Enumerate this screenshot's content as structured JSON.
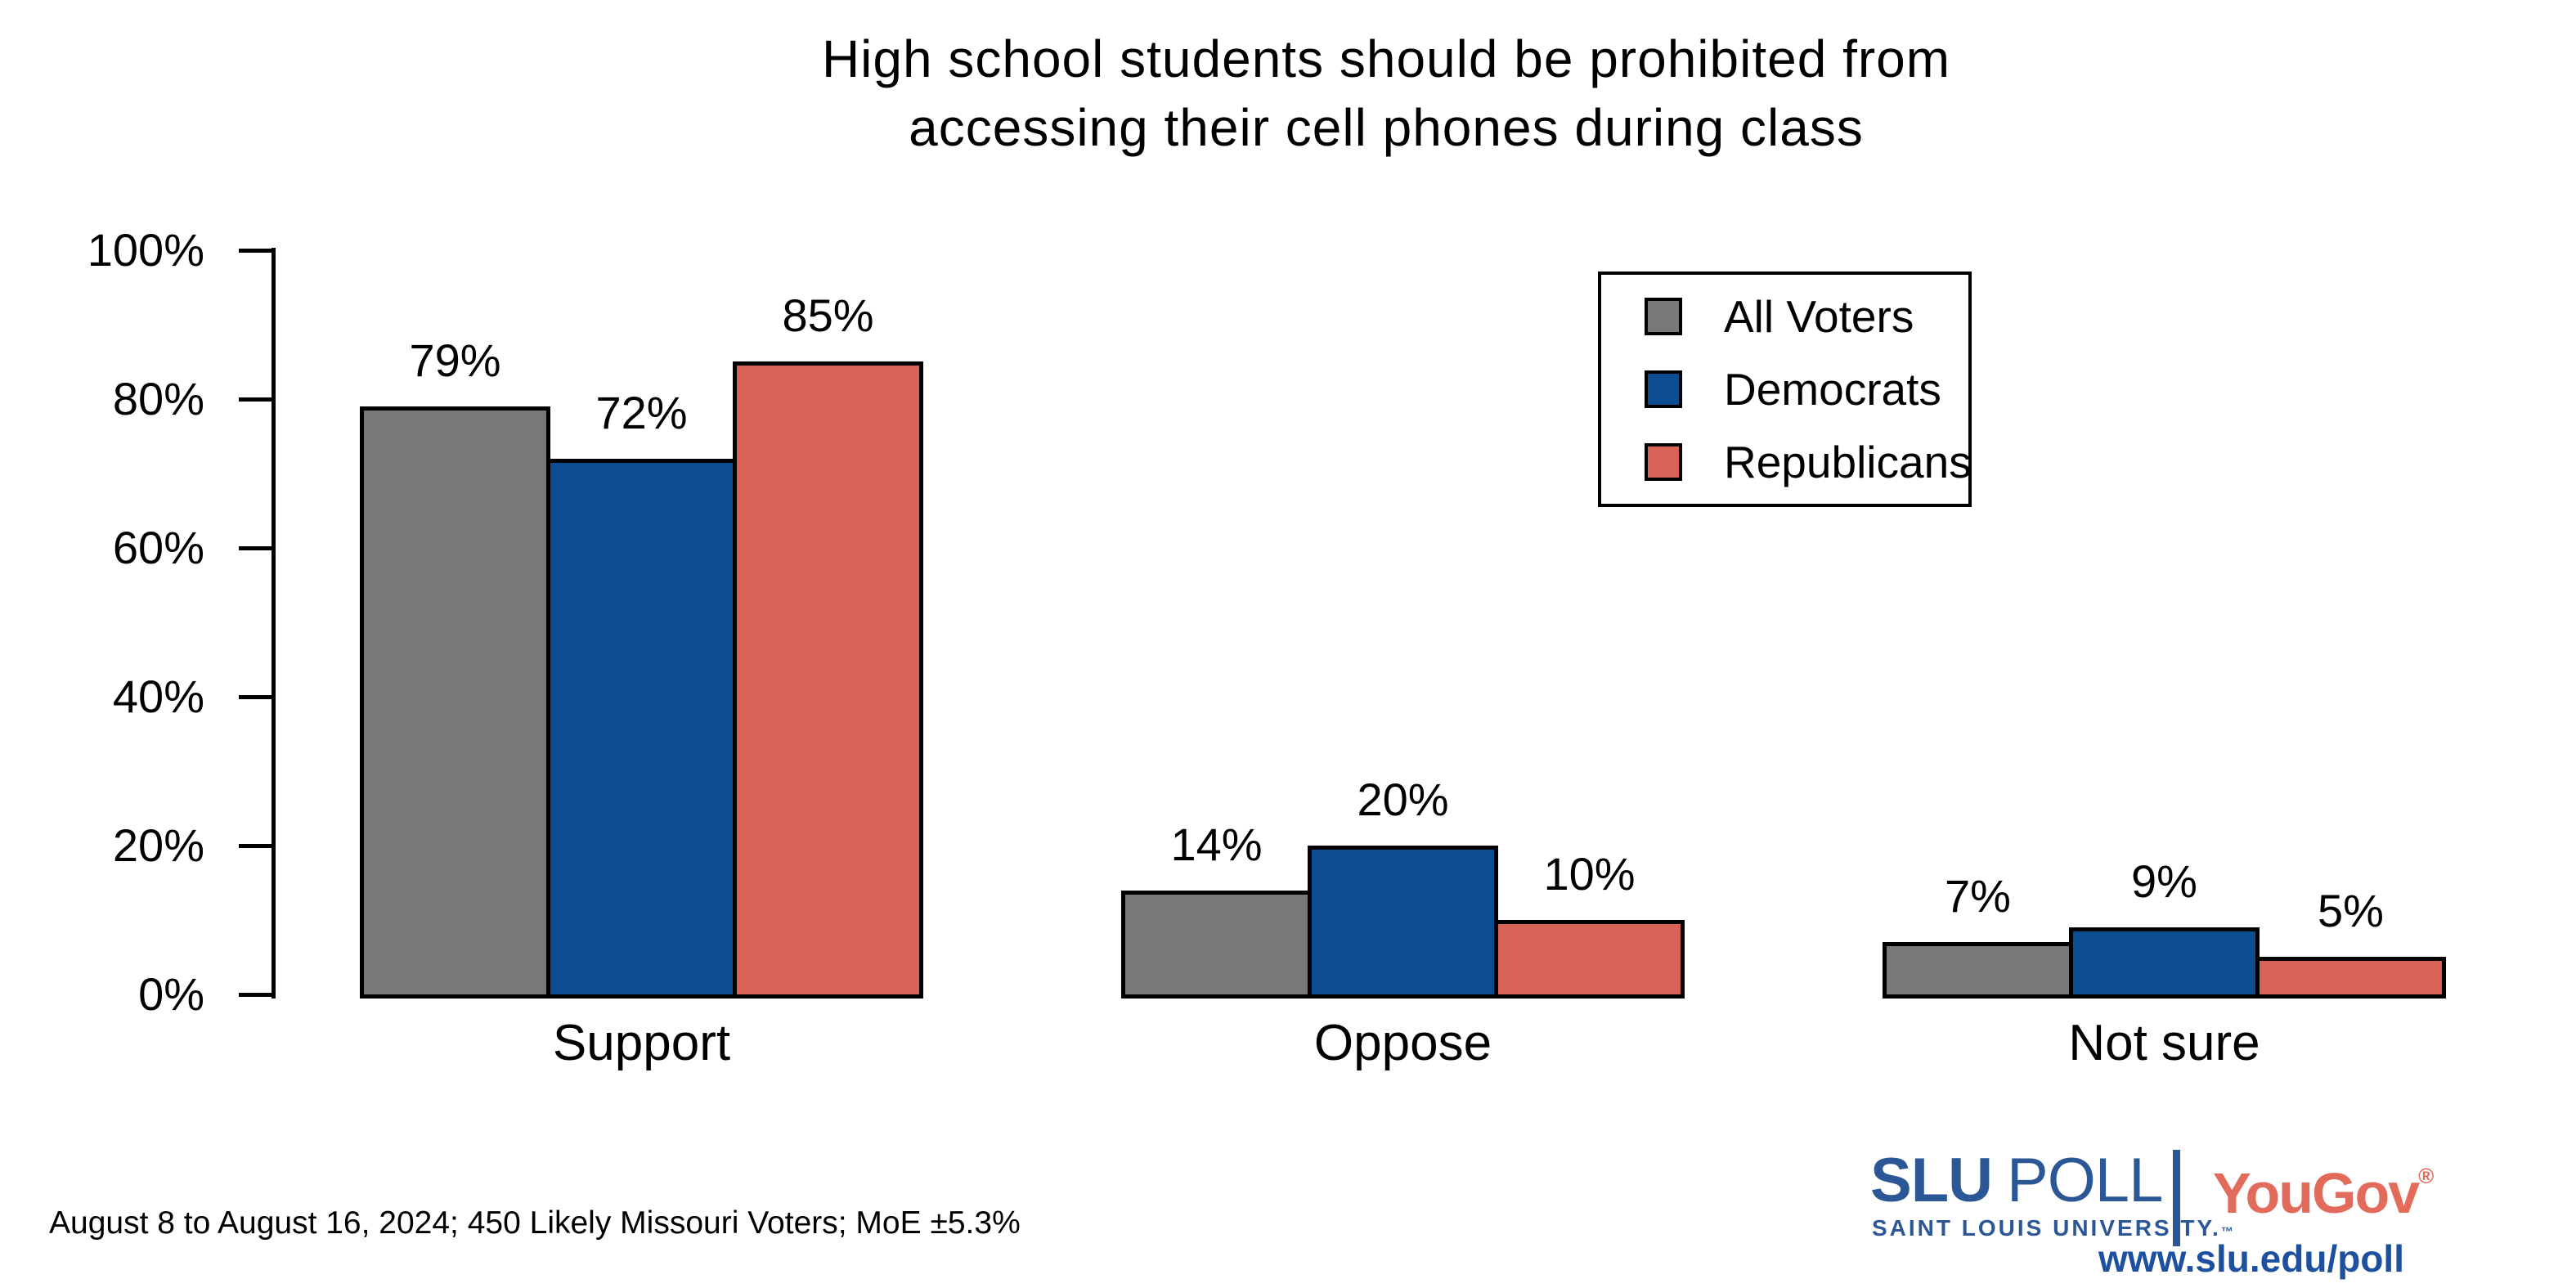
{
  "title": {
    "line1": "High school students should be prohibited from",
    "line2": "accessing their cell phones during class"
  },
  "chart_data": {
    "type": "bar",
    "title": "High school students should be prohibited from accessing their cell phones during class",
    "categories": [
      "Support",
      "Oppose",
      "Not sure"
    ],
    "series": [
      {
        "name": "All Voters",
        "color": "#787878",
        "values": [
          79,
          14,
          7
        ],
        "labels": [
          "79%",
          "14%",
          "7%"
        ]
      },
      {
        "name": "Democrats",
        "color": "#0d4d91",
        "values": [
          72,
          20,
          9
        ],
        "labels": [
          "72%",
          "20%",
          "9%"
        ]
      },
      {
        "name": "Republicans",
        "color": "#d96357",
        "values": [
          85,
          10,
          5
        ],
        "labels": [
          "85%",
          "10%",
          "5%"
        ]
      }
    ],
    "xlabel": "",
    "ylabel": "",
    "ylim": [
      0,
      100
    ],
    "yticks": [
      0,
      20,
      40,
      60,
      80,
      100
    ],
    "ytick_labels": [
      "0%",
      "20%",
      "40%",
      "60%",
      "80%",
      "100%"
    ],
    "grid": false,
    "legend_position": "upper right",
    "bar_edge_color": "#000000"
  },
  "footer": {
    "note": "August 8 to August 16, 2024; 450 Likely Missouri Voters; MoE ±5.3%"
  },
  "branding": {
    "slu": "SLU",
    "poll": "POLL",
    "slu_subtitle": "SAINT LOUIS UNIVERSITY.",
    "slu_tm": "™",
    "yougov": "YouGov",
    "yougov_reg": "®",
    "url": "www.slu.edu/poll",
    "slu_blue": "#2b5797",
    "yougov_coral": "#e26b5b",
    "url_blue": "#1d509f"
  }
}
